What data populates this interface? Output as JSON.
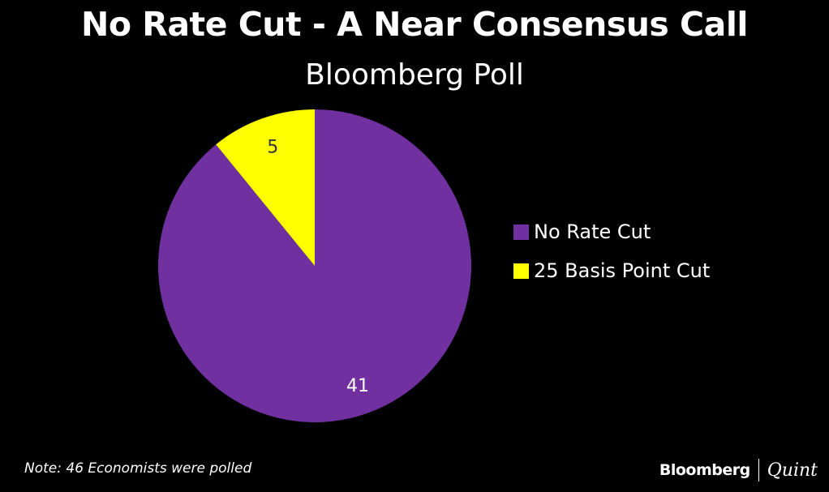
{
  "title": "No Rate Cut - A Near Consensus Call",
  "subtitle": "Bloomberg Poll",
  "chart_data": {
    "type": "pie",
    "title": "No Rate Cut - A Near Consensus Call",
    "subtitle": "Bloomberg Poll",
    "slices": [
      {
        "name": "No Rate Cut",
        "value": 41,
        "color": "#7030A0"
      },
      {
        "name": "25 Basis Point Cut",
        "value": 5,
        "color": "#FFFF00"
      }
    ],
    "data_labels": [
      "41",
      "5"
    ],
    "legend_position": "right",
    "start_angle": "12 o'clock, clockwise"
  },
  "legend": {
    "items": [
      {
        "label": "No Rate Cut",
        "color": "#7030A0"
      },
      {
        "label": "25 Basis Point Cut",
        "color": "#FFFF00"
      }
    ]
  },
  "footer": {
    "note": "Note: 46 Economists were polled",
    "brand_main": "Bloomberg",
    "brand_sub": "Quint"
  }
}
